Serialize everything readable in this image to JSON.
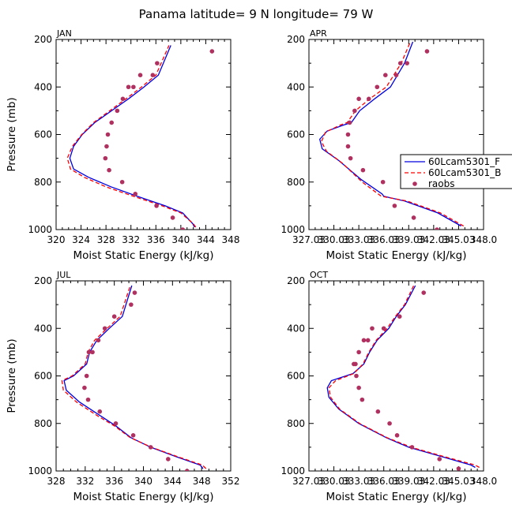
{
  "figure": {
    "title": "Panama  latitude= 9 N longitude= 79 W",
    "xlabel": "Moist Static Energy (kJ/kg)",
    "ylabel": "Pressure (mb)"
  },
  "legend": {
    "entries": [
      "60Lcam5301_F",
      "60Lcam5301_B",
      "raobs"
    ],
    "colors": [
      "#0000dd",
      "#ff0000",
      "#b03060"
    ]
  },
  "chart_data": [
    {
      "type": "line",
      "panel": "JAN",
      "xlim": [
        320,
        348
      ],
      "xticks": [
        "320",
        "324",
        "328",
        "332",
        "336",
        "340",
        "344",
        "348"
      ],
      "ylim": [
        1000,
        200
      ],
      "yticks": [
        "200",
        "400",
        "600",
        "800",
        "1000"
      ],
      "series": [
        {
          "name": "60Lcam5301_F",
          "style": "solid",
          "x": [
            342.2,
            341.9,
            340.3,
            337.5,
            333.0,
            328.8,
            325.2,
            322.8,
            322.2,
            322.8,
            324.2,
            326.2,
            328.9,
            331.6,
            334.1,
            336.4,
            338.4
          ],
          "y": [
            990,
            975,
            930,
            900,
            860,
            820,
            780,
            745,
            700,
            650,
            600,
            550,
            500,
            450,
            400,
            350,
            225
          ]
        },
        {
          "name": "60Lcam5301_B",
          "style": "dashed",
          "x": [
            342.4,
            342.0,
            340.0,
            337.0,
            332.4,
            328.0,
            324.5,
            322.3,
            321.8,
            322.6,
            324.1,
            326.0,
            328.6,
            331.2,
            333.7,
            336.0,
            338.1
          ],
          "y": [
            990,
            975,
            930,
            900,
            860,
            820,
            780,
            745,
            700,
            650,
            600,
            550,
            500,
            450,
            400,
            350,
            225
          ]
        },
        {
          "name": "raobs",
          "style": "markers",
          "x": [
            340.3,
            338.7,
            336.1,
            332.7,
            330.6,
            328.5,
            327.9,
            328.1,
            328.3,
            328.9,
            329.8,
            330.7,
            331.6,
            332.4,
            333.5,
            335.5,
            336.2,
            345.0
          ],
          "y": [
            1000,
            950,
            900,
            850,
            800,
            750,
            700,
            650,
            600,
            550,
            500,
            450,
            400,
            400,
            350,
            350,
            300,
            250
          ]
        }
      ]
    },
    {
      "type": "line",
      "panel": "APR",
      "xlim": [
        327,
        348
      ],
      "xticks": [
        "327.03",
        "330.03",
        "333.03",
        "336.03",
        "339.03",
        "342.03",
        "345.03",
        "348.0"
      ],
      "ylim": [
        1000,
        200
      ],
      "yticks": [
        "200",
        "400",
        "600",
        "800",
        "1000"
      ],
      "series": [
        {
          "name": "60Lcam5301_F",
          "style": "solid",
          "x": [
            345.3,
            344.8,
            342.5,
            338.5,
            336.0,
            335.8,
            333.3,
            330.6,
            328.6,
            328.3,
            329.2,
            331.2,
            332.1,
            333.1,
            334.9,
            336.8,
            338.5,
            339.5
          ],
          "y": [
            985,
            975,
            930,
            880,
            860,
            850,
            790,
            710,
            660,
            620,
            585,
            560,
            550,
            500,
            450,
            400,
            300,
            210
          ]
        },
        {
          "name": "60Lcam5301_B",
          "style": "dashed",
          "x": [
            345.6,
            345.1,
            342.8,
            338.8,
            335.7,
            333.4,
            331.0,
            329.1,
            328.5,
            329.0,
            330.8,
            331.6,
            332.6,
            334.3,
            336.3,
            338.1,
            339.2
          ],
          "y": [
            985,
            975,
            930,
            880,
            860,
            800,
            720,
            670,
            630,
            590,
            560,
            550,
            500,
            450,
            400,
            300,
            210
          ]
        },
        {
          "name": "raobs",
          "style": "markers",
          "x": [
            342.4,
            339.6,
            337.3,
            335.9,
            333.5,
            332.0,
            331.7,
            331.7,
            331.9,
            332.5,
            333.0,
            334.2,
            335.2,
            336.2,
            337.5,
            338.0,
            338.8,
            341.2
          ],
          "y": [
            1000,
            950,
            900,
            800,
            750,
            700,
            650,
            600,
            550,
            500,
            450,
            450,
            400,
            350,
            350,
            300,
            300,
            250
          ]
        }
      ]
    },
    {
      "type": "line",
      "panel": "JUL",
      "xlim": [
        328,
        352
      ],
      "xticks": [
        "328",
        "332",
        "336",
        "340",
        "344",
        "348",
        "352"
      ],
      "ylim": [
        1000,
        200
      ],
      "yticks": [
        "200",
        "400",
        "600",
        "800",
        "1000"
      ],
      "series": [
        {
          "name": "60Lcam5301_F",
          "style": "solid",
          "x": [
            348.2,
            347.8,
            344.5,
            341.0,
            338.3,
            336.2,
            334.2,
            331.2,
            329.4,
            329.1,
            330.4,
            332.2,
            332.6,
            333.6,
            335.3,
            337.1,
            338.4
          ],
          "y": [
            990,
            975,
            940,
            900,
            860,
            810,
            770,
            710,
            660,
            620,
            600,
            550,
            500,
            450,
            400,
            350,
            220
          ]
        },
        {
          "name": "60Lcam5301_B",
          "style": "dashed",
          "x": [
            348.6,
            348.1,
            344.7,
            341.1,
            338.2,
            336.0,
            333.8,
            330.8,
            329.0,
            328.8,
            330.2,
            332.0,
            332.4,
            333.3,
            335.0,
            336.8,
            338.2
          ],
          "y": [
            990,
            975,
            940,
            900,
            860,
            810,
            770,
            710,
            660,
            620,
            600,
            550,
            500,
            450,
            400,
            350,
            220
          ]
        },
        {
          "name": "raobs",
          "style": "markers",
          "x": [
            346.0,
            343.4,
            341.0,
            338.6,
            336.2,
            334.0,
            332.4,
            331.9,
            332.2,
            332.5,
            333.0,
            333.8,
            334.7,
            336.0,
            338.3,
            338.8
          ],
          "y": [
            1000,
            950,
            900,
            850,
            800,
            750,
            700,
            650,
            600,
            500,
            500,
            450,
            400,
            350,
            300,
            250
          ]
        }
      ]
    },
    {
      "type": "line",
      "panel": "OCT",
      "xlim": [
        327,
        348
      ],
      "xticks": [
        "327.03",
        "330.03",
        "333.03",
        "336.03",
        "339.03",
        "342.03",
        "345.03",
        "348.0"
      ],
      "ylim": [
        1000,
        200
      ],
      "yticks": [
        "200",
        "400",
        "600",
        "800",
        "1000"
      ],
      "series": [
        {
          "name": "60Lcam5301_F",
          "style": "solid",
          "x": [
            347.0,
            346.5,
            343.0,
            339.0,
            336.3,
            333.0,
            330.6,
            329.4,
            329.2,
            329.7,
            332.3,
            333.6,
            334.3,
            335.2,
            336.6,
            337.5,
            338.6,
            339.8
          ],
          "y": [
            985,
            975,
            940,
            900,
            860,
            800,
            740,
            690,
            650,
            620,
            590,
            550,
            500,
            450,
            400,
            350,
            300,
            220
          ]
        },
        {
          "name": "60Lcam5301_B",
          "style": "dashed",
          "x": [
            347.5,
            347.0,
            343.3,
            339.3,
            336.4,
            333.1,
            330.7,
            329.6,
            329.4,
            330.2,
            332.4,
            333.5,
            334.2,
            335.1,
            336.4,
            337.4,
            338.5,
            339.6
          ],
          "y": [
            985,
            975,
            940,
            900,
            860,
            800,
            740,
            690,
            650,
            620,
            590,
            550,
            500,
            450,
            400,
            350,
            300,
            220
          ]
        },
        {
          "name": "raobs",
          "style": "markers",
          "x": [
            345.0,
            342.7,
            339.4,
            337.6,
            336.7,
            335.3,
            333.4,
            333.0,
            332.7,
            332.6,
            332.4,
            333.0,
            333.6,
            334.1,
            334.6,
            336.0,
            337.9,
            340.8
          ],
          "y": [
            990,
            950,
            900,
            850,
            800,
            750,
            700,
            650,
            600,
            550,
            550,
            500,
            450,
            450,
            400,
            400,
            350,
            250
          ]
        }
      ]
    }
  ]
}
